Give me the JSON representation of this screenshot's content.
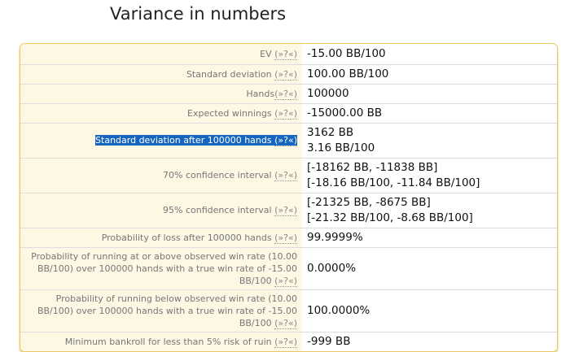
{
  "title": "Variance in numbers",
  "help_label": "(»?«)",
  "rows": [
    {
      "label": "EV",
      "values": [
        "-15.00 BB/100"
      ]
    },
    {
      "label": "Standard deviation",
      "values": [
        "100.00 BB/100"
      ]
    },
    {
      "label": "Hands",
      "values": [
        "100000"
      ]
    },
    {
      "label": "Expected winnings",
      "values": [
        "-15000.00 BB"
      ]
    },
    {
      "label": "Standard deviation after 100000 hands",
      "values": [
        "3162 BB",
        "3.16 BB/100"
      ],
      "selected": true
    },
    {
      "label": "70% confidence interval",
      "values": [
        "[-18162 BB, -11838 BB]",
        "[-18.16 BB/100, -11.84 BB/100]"
      ]
    },
    {
      "label": "95% confidence interval",
      "values": [
        "[-21325 BB, -8675 BB]",
        "[-21.32 BB/100, -8.68 BB/100]"
      ]
    },
    {
      "label": "Probability of loss after 100000 hands",
      "values": [
        "99.9999%"
      ]
    },
    {
      "label": "Probability of running at or above observed win rate (10.00 BB/100) over 100000 hands with a true win rate of -15.00 BB/100",
      "values": [
        "0.0000%"
      ]
    },
    {
      "label": "Probability of running below observed win rate (10.00 BB/100) over 100000 hands with a true win rate of -15.00 BB/100",
      "values": [
        "100.0000%"
      ]
    },
    {
      "label": "Minimum bankroll for less than 5% risk of ruin",
      "values": [
        "-999 BB"
      ]
    }
  ]
}
